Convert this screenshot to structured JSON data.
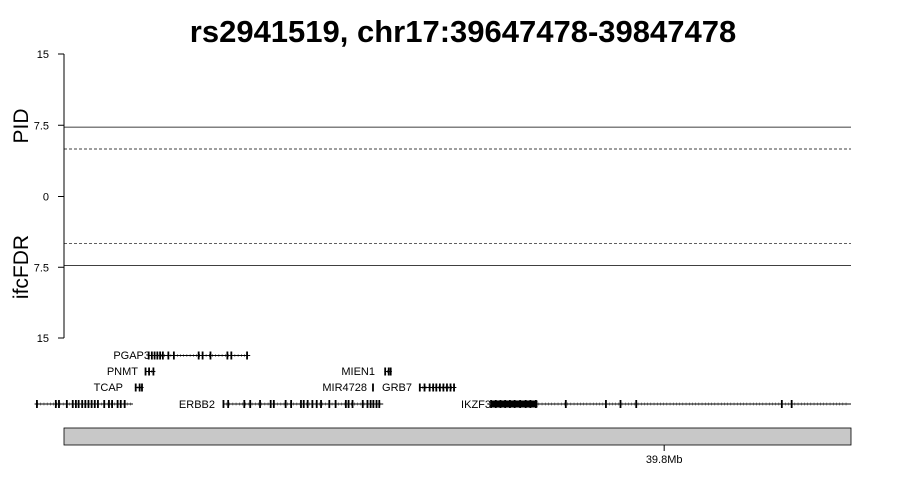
{
  "chart_data": {
    "type": "line",
    "title": "rs2941519, chr17:39647478-39847478",
    "region": {
      "chrom": "chr17",
      "start": 39647478,
      "end": 39847478
    },
    "panels": [
      {
        "name": "PID",
        "ylabel": "PID",
        "ylim": [
          0,
          15
        ],
        "ticks": [
          "15",
          "7.5",
          "0"
        ],
        "tick_values": [
          15,
          7.5,
          0
        ],
        "threshold_solid": 7.3,
        "threshold_dashed": 5
      },
      {
        "name": "ifcFDR",
        "ylabel": "ifcFDR",
        "ylim": [
          0,
          15
        ],
        "ticks": [
          "7.5",
          "15"
        ],
        "tick_values": [
          7.5,
          15
        ],
        "threshold_solid": 7.3,
        "threshold_dashed": 5
      }
    ],
    "genes": [
      {
        "name": "PGAP3",
        "start": 39669000,
        "end": 39694800,
        "strand": "-",
        "exons": [
          39669000,
          39669800,
          39670500,
          39671200,
          39671900,
          39672600,
          39674000,
          39675400,
          39681700,
          39682700,
          39684700,
          39689000,
          39690000,
          39694000
        ]
      },
      {
        "name": "PNMT",
        "start": 39668200,
        "end": 39670700,
        "strand": "+",
        "exons": [
          39668200,
          39669100,
          39670200
        ]
      },
      {
        "name": "TCAP",
        "start": 39665500,
        "end": 39667700,
        "strand": "+",
        "exons": [
          39665700,
          39666700,
          39667300
        ]
      },
      {
        "name": "ERBB2",
        "start": 39688000,
        "end": 39728600,
        "strand": "+",
        "exons": [
          39688000,
          39689200,
          39693300,
          39694800,
          39697300,
          39700000,
          39700800,
          39703800,
          39705200,
          39707700,
          39708400,
          39709400,
          39710600,
          39711700,
          39712800,
          39714900,
          39716500,
          39719100,
          39719800,
          39720800,
          39723400,
          39724600,
          39725400,
          39726100,
          39726900,
          39727600
        ]
      },
      {
        "name": "MIEN1",
        "start": 39728900,
        "end": 39730800,
        "strand": "-",
        "exons": [
          39729100,
          39730000,
          39730500
        ]
      },
      {
        "name": "MIR4728",
        "start": 39726000,
        "end": 39726100,
        "strand": "+",
        "exons": [
          39726000
        ]
      },
      {
        "name": "GRB7",
        "start": 39737900,
        "end": 39747200,
        "strand": "+",
        "exons": [
          39737900,
          39739100,
          39740400,
          39741300,
          39742100,
          39743000,
          39743900,
          39744800,
          39745700,
          39746600
        ]
      },
      {
        "name": "IKZF3",
        "start": 39756000,
        "end": 39860000,
        "strand": "-",
        "exons": [
          39756000,
          39757200,
          39758400,
          39759600,
          39760800,
          39762000,
          39763400,
          39764800,
          39766000,
          39767400,
          39775000,
          39785200,
          39788900,
          39792900,
          39829900,
          39832400
        ]
      },
      {
        "name": "",
        "start": 39640000,
        "end": 39665000,
        "strand": "-",
        "exons": [
          39640600,
          39645400,
          39646200,
          39648200,
          39649700,
          39650500,
          39651200,
          39652100,
          39652900,
          39653700,
          39654500,
          39655300,
          39656100,
          39657700,
          39658900,
          39659700,
          39661100,
          39661900,
          39662900
        ]
      }
    ],
    "ideogram": {
      "color": "#c8c8c8"
    },
    "xaxis": {
      "ticks": [
        {
          "value": 39800000,
          "label": "39.8Mb"
        }
      ]
    }
  }
}
